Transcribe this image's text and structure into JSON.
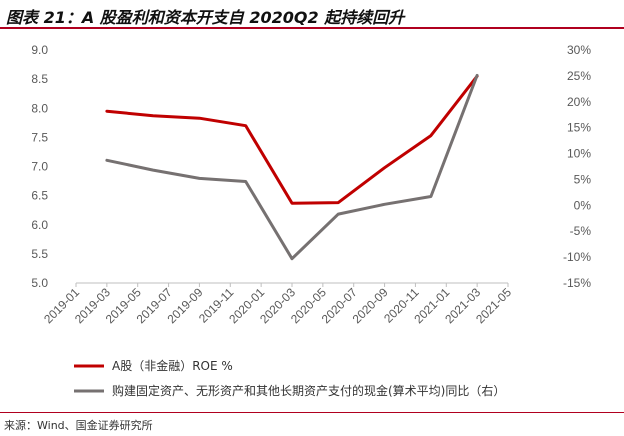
{
  "title": "图表 21：A 股盈利和资本开支自 2020Q2 起持续回升",
  "source": "来源：Wind、国金证券研究所",
  "chart_data": {
    "type": "line",
    "x_ticks": [
      "2019-01",
      "2019-03",
      "2019-05",
      "2019-07",
      "2019-09",
      "2019-11",
      "2020-01",
      "2020-03",
      "2020-05",
      "2020-07",
      "2020-09",
      "2020-11",
      "2021-01",
      "2021-03",
      "2021-05"
    ],
    "left_axis": {
      "ylim": [
        5.0,
        9.0
      ],
      "ticks": [
        "5.0",
        "5.5",
        "6.0",
        "6.5",
        "7.0",
        "7.5",
        "8.0",
        "8.5",
        "9.0"
      ]
    },
    "right_axis": {
      "ylim": [
        -15,
        30
      ],
      "ticks": [
        "-15%",
        "-10%",
        "-5%",
        "0%",
        "5%",
        "10%",
        "15%",
        "20%",
        "25%",
        "30%"
      ]
    },
    "series": [
      {
        "name": "A股（非金融）ROE %",
        "axis": "left",
        "color": "#c00000",
        "x": [
          "2019-03",
          "2019-06",
          "2019-09",
          "2019-12",
          "2020-03",
          "2020-06",
          "2020-09",
          "2020-12",
          "2021-03"
        ],
        "values": [
          7.95,
          7.87,
          7.83,
          7.7,
          6.37,
          6.38,
          6.98,
          7.53,
          8.55
        ]
      },
      {
        "name": "购建固定资产、无形资产和其他长期资产支付的现金(算术平均)同比（右）",
        "axis": "right",
        "color": "#767171",
        "x": [
          "2019-03",
          "2019-06",
          "2019-09",
          "2019-12",
          "2020-03",
          "2020-06",
          "2020-09",
          "2020-12",
          "2021-03"
        ],
        "values": [
          8.7,
          6.8,
          5.2,
          4.6,
          -10.3,
          -1.7,
          0.2,
          1.7,
          25.1
        ]
      }
    ]
  }
}
